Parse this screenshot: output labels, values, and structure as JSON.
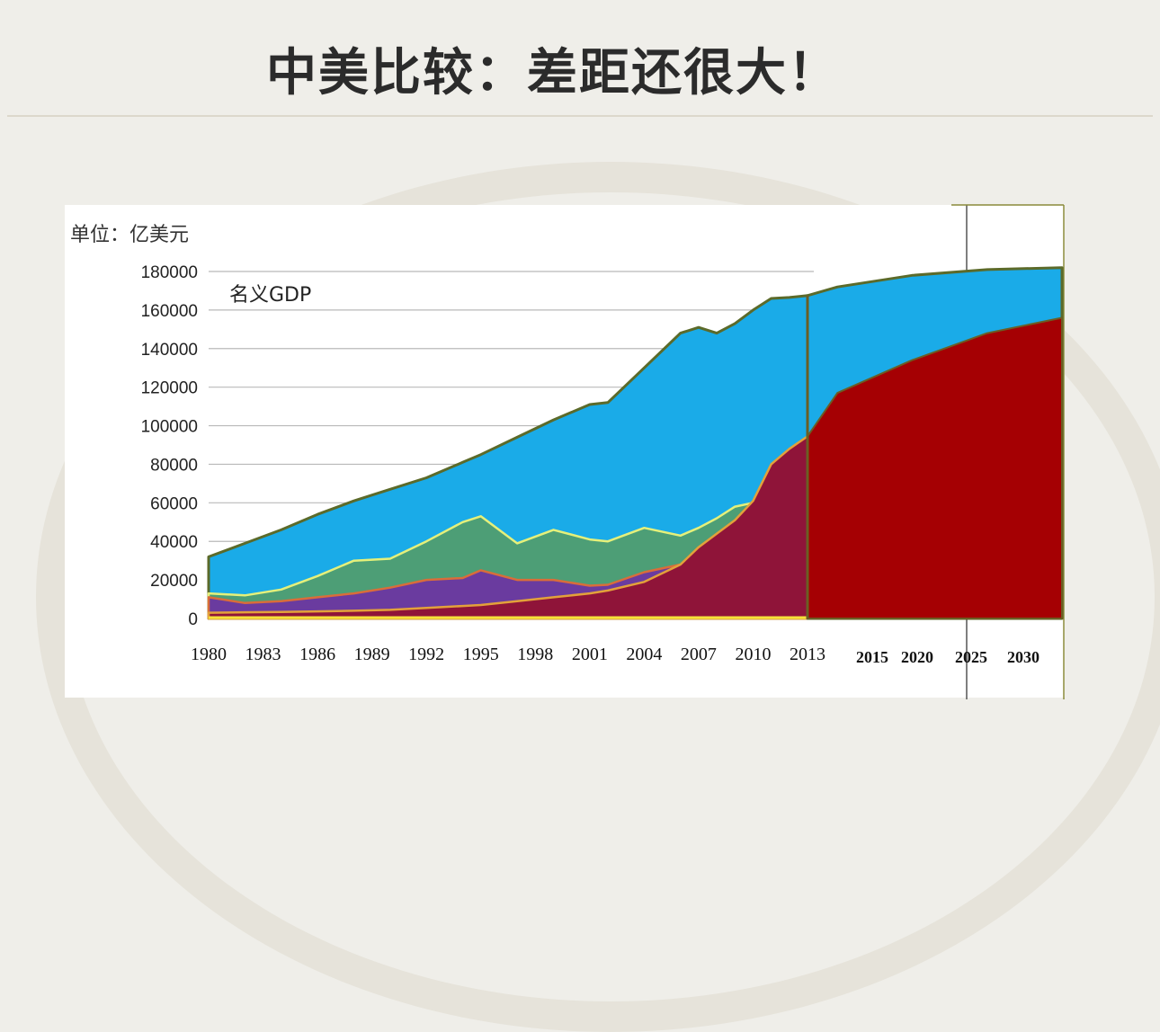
{
  "slide": {
    "title": "中美比较：差距还很大！"
  },
  "chart_data": {
    "type": "area",
    "unit_label": "单位：亿美元",
    "inner_label": "名义GDP",
    "ylim": [
      0,
      180000
    ],
    "y_ticks": [
      "0",
      "20000",
      "40000",
      "60000",
      "80000",
      "100000",
      "120000",
      "140000",
      "160000",
      "180000"
    ],
    "x_tick_labels": [
      "1980",
      "1983",
      "1986",
      "1989",
      "1992",
      "1995",
      "1998",
      "2001",
      "2004",
      "2007",
      "2010",
      "2013"
    ],
    "projection_tick_labels": [
      "2015",
      "2020",
      "2025",
      "2030"
    ],
    "grid": true,
    "x": [
      1980,
      1982,
      1984,
      1986,
      1988,
      1990,
      1992,
      1994,
      1995,
      1997,
      1999,
      2001,
      2002,
      2004,
      2006,
      2007,
      2008,
      2009,
      2010,
      2011,
      2012,
      2013
    ],
    "series": [
      {
        "color": "#1aabe8",
        "values": [
          32000,
          39000,
          46000,
          54000,
          61000,
          67000,
          73000,
          81000,
          85000,
          94000,
          103000,
          111000,
          112000,
          130000,
          148000,
          151000,
          148000,
          153000,
          160000,
          166000,
          166500,
          167500
        ]
      },
      {
        "color": "#4d9e76",
        "values": [
          13000,
          12000,
          15000,
          22000,
          30000,
          31000,
          40000,
          50000,
          53000,
          39000,
          46000,
          41000,
          40000,
          47000,
          43000,
          47000,
          52000,
          58000,
          60000,
          60500,
          60500,
          60500
        ]
      },
      {
        "color": "#6a3b9f",
        "values": [
          11000,
          8000,
          9000,
          11000,
          13000,
          16000,
          20000,
          21000,
          25000,
          20000,
          20000,
          17000,
          17500,
          24000,
          28000,
          31000,
          33000,
          32000,
          32500,
          34000,
          34000,
          34000
        ]
      },
      {
        "color": "#8f1439",
        "values": [
          3000,
          3200,
          3400,
          3700,
          4000,
          4500,
          5500,
          6500,
          7000,
          9000,
          11000,
          13000,
          14500,
          19000,
          28000,
          37000,
          44000,
          51000,
          61000,
          80000,
          88000,
          94500
        ]
      }
    ],
    "projection": {
      "x": [
        2013,
        2015,
        2020,
        2025,
        2030
      ],
      "us": [
        167500,
        172000,
        178000,
        181000,
        182000
      ],
      "china": [
        94500,
        117000,
        134000,
        148000,
        156000
      ],
      "us_color": "#1aabe8",
      "china_color": "#a50003"
    }
  }
}
